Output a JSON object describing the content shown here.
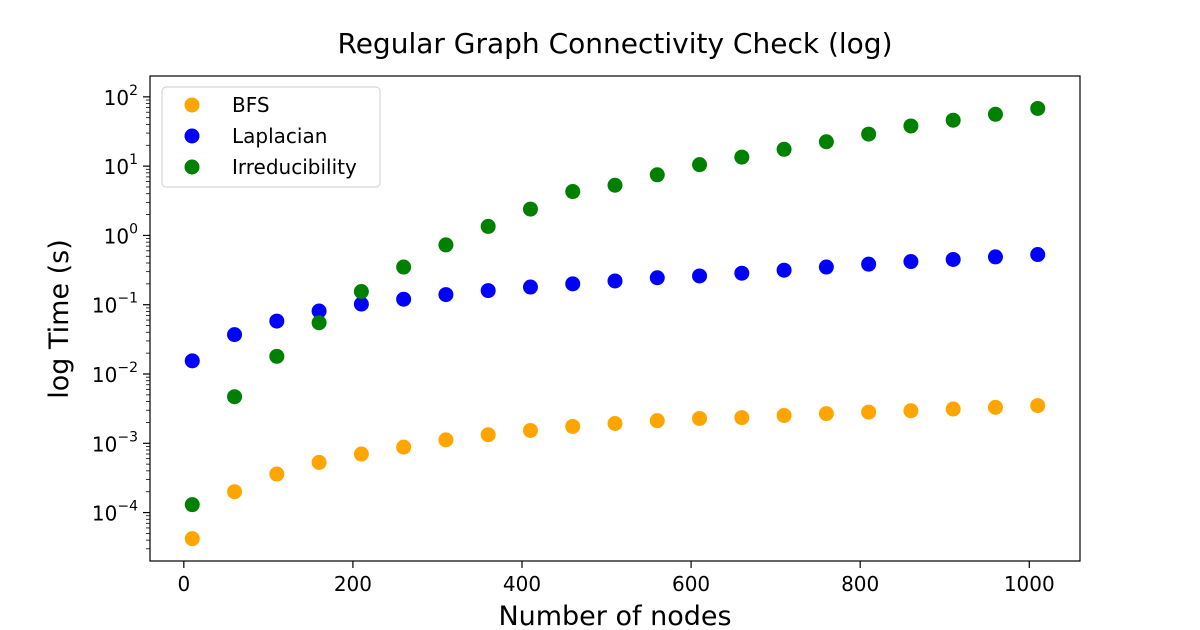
{
  "chart_data": {
    "type": "scatter",
    "title": "Regular Graph Connectivity Check (log)",
    "xlabel": "Number of nodes",
    "ylabel": "log Time (s)",
    "yscale": "log",
    "xlim": [
      -40,
      1060
    ],
    "ylim": [
      2e-05,
      200
    ],
    "x_ticks": [
      0,
      200,
      400,
      600,
      800,
      1000
    ],
    "y_ticks": [
      {
        "value": 0.0001,
        "base": "10",
        "exp": "−4"
      },
      {
        "value": 0.001,
        "base": "10",
        "exp": "−3"
      },
      {
        "value": 0.01,
        "base": "10",
        "exp": "−2"
      },
      {
        "value": 0.1,
        "base": "10",
        "exp": "−1"
      },
      {
        "value": 1,
        "base": "10",
        "exp": "0"
      },
      {
        "value": 10,
        "base": "10",
        "exp": "1"
      },
      {
        "value": 100,
        "base": "10",
        "exp": "2"
      }
    ],
    "grid": false,
    "legend_position": "top-left",
    "x": [
      10,
      60,
      110,
      160,
      210,
      260,
      310,
      360,
      410,
      460,
      510,
      560,
      610,
      660,
      710,
      760,
      810,
      860,
      910,
      960,
      1010
    ],
    "series": [
      {
        "name": "BFS",
        "color": "#ffa500",
        "values": [
          4.2e-05,
          0.0002,
          0.00036,
          0.00053,
          0.0007,
          0.00088,
          0.00112,
          0.00133,
          0.00153,
          0.00175,
          0.00193,
          0.00212,
          0.00228,
          0.00235,
          0.00252,
          0.00268,
          0.00282,
          0.00295,
          0.00312,
          0.0033,
          0.0035
        ]
      },
      {
        "name": "Laplacian",
        "color": "#0000ff",
        "values": [
          0.0155,
          0.037,
          0.058,
          0.081,
          0.102,
          0.12,
          0.14,
          0.16,
          0.18,
          0.2,
          0.22,
          0.245,
          0.26,
          0.285,
          0.315,
          0.35,
          0.385,
          0.42,
          0.45,
          0.49,
          0.53
        ]
      },
      {
        "name": "Irreducibility",
        "color": "#008000",
        "values": [
          0.00013,
          0.0047,
          0.018,
          0.055,
          0.155,
          0.35,
          0.73,
          1.35,
          2.4,
          4.3,
          5.3,
          7.5,
          10.5,
          13.5,
          17.5,
          22.5,
          29,
          38,
          46,
          56,
          68
        ]
      }
    ]
  }
}
